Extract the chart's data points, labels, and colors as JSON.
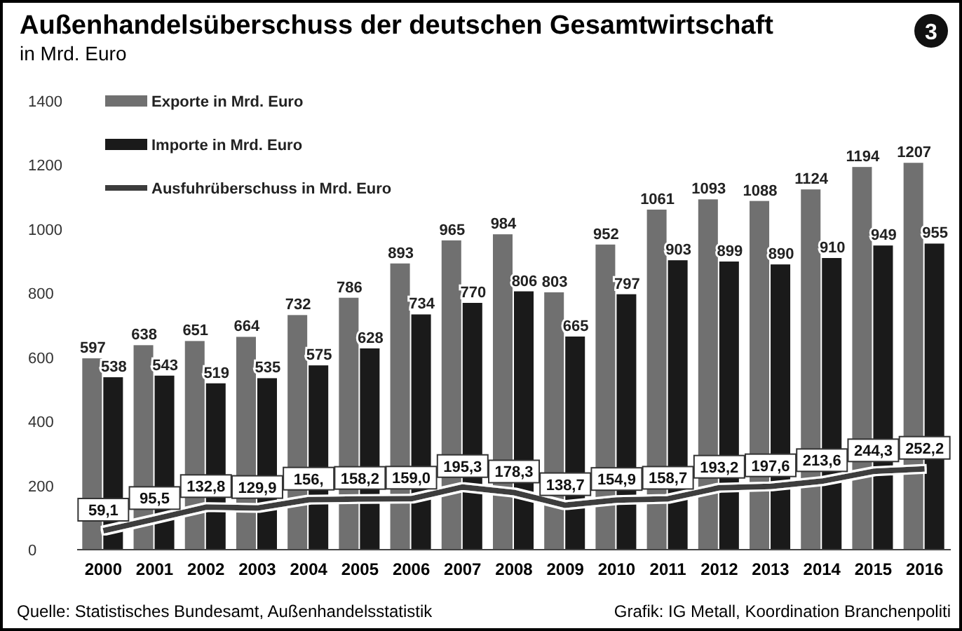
{
  "chart_data": {
    "type": "bar",
    "title": "Außenhandelsüberschuss der deutschen Gesamtwirtschaft",
    "subtitle": "in Mrd. Euro",
    "categories": [
      "2000",
      "2001",
      "2002",
      "2003",
      "2004",
      "2005",
      "2006",
      "2007",
      "2008",
      "2009",
      "2010",
      "2011",
      "2012",
      "2013",
      "2014",
      "2015",
      "2016"
    ],
    "series": [
      {
        "name": "Exporte in Mrd. Euro",
        "color": "#707070",
        "values": [
          597,
          638,
          651,
          664,
          732,
          786,
          893,
          965,
          984,
          803,
          952,
          1061,
          1093,
          1088,
          1124,
          1194,
          1207
        ],
        "value_labels": [
          "597",
          "638",
          "651",
          "664",
          "732",
          "786",
          "893",
          "965",
          "984",
          "803",
          "952",
          "1061",
          "1093",
          "1088",
          "1124",
          "1194",
          "1207"
        ]
      },
      {
        "name": "Importe in Mrd. Euro",
        "color": "#1a1a1a",
        "values": [
          538,
          543,
          519,
          535,
          575,
          628,
          734,
          770,
          806,
          665,
          797,
          903,
          899,
          890,
          910,
          949,
          955
        ],
        "value_labels": [
          "538",
          "543",
          "519",
          "535",
          "575",
          "628",
          "734",
          "770",
          "806",
          "665",
          "797",
          "903",
          "899",
          "890",
          "910",
          "949",
          "955"
        ]
      },
      {
        "name": "Ausfuhrüberschuss in Mrd. Euro",
        "type": "line",
        "color": "#3c3c3c",
        "values": [
          59.1,
          95.5,
          132.8,
          129.9,
          156,
          158.2,
          159.0,
          195.3,
          178.3,
          138.7,
          154.9,
          158.7,
          193.2,
          197.6,
          213.6,
          244.3,
          252.2
        ],
        "value_labels": [
          "59,1",
          "95,5",
          "132,8",
          "129,9",
          "156,",
          "158,2",
          "159,0",
          "195,3",
          "178,3",
          "138,7",
          "154,9",
          "158,7",
          "193,2",
          "197,6",
          "213,6",
          "244,3",
          "252,2"
        ]
      }
    ],
    "ylim": [
      0,
      1400
    ],
    "yticks": [
      0,
      200,
      400,
      600,
      800,
      1000,
      1200,
      1400
    ],
    "legend": "top left",
    "grid": false,
    "annotations": [
      "3",
      "Quelle: Statistisches Bundesamt, Außenhandelsstatistik",
      "Grafik: IG Metall, Koordination Branchenpoliti"
    ]
  }
}
